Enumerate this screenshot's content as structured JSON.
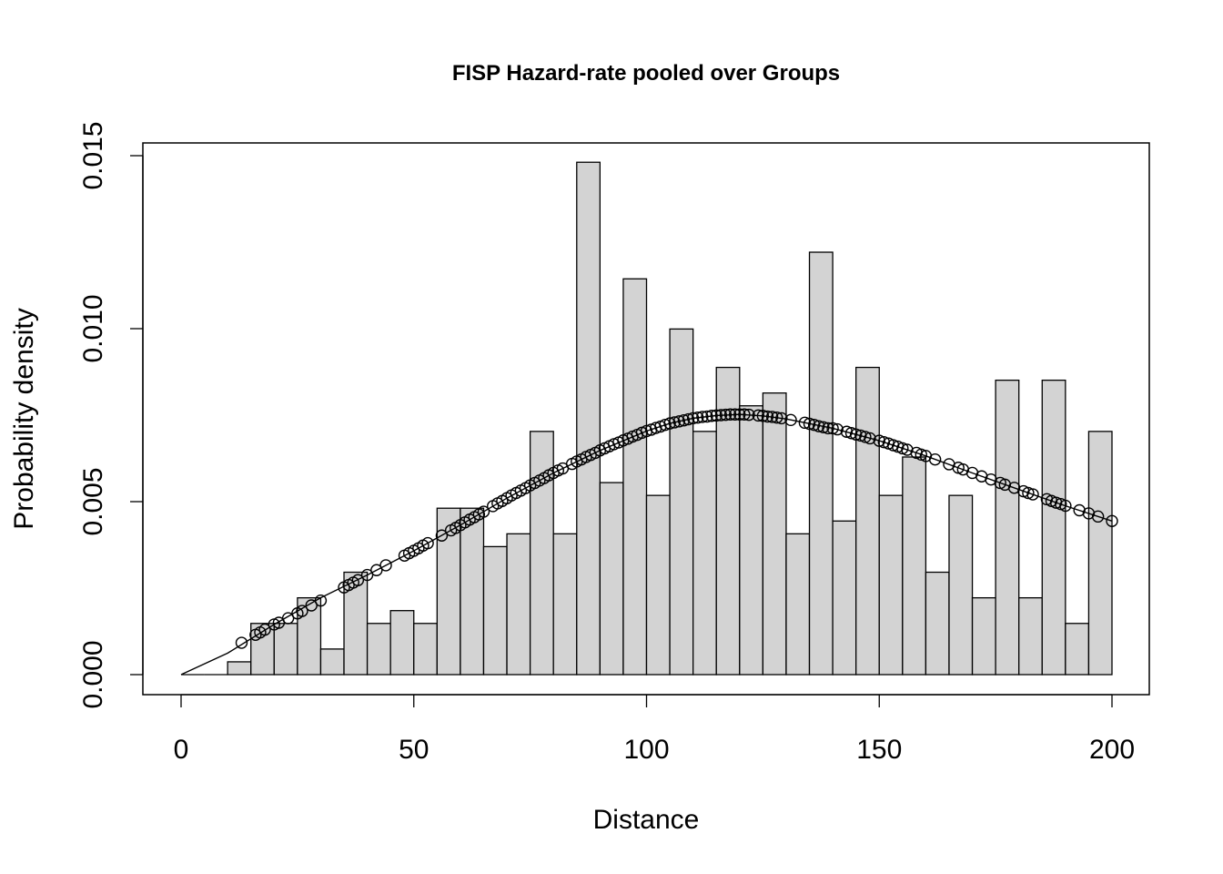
{
  "chart_data": {
    "type": "bar",
    "title": "FISP Hazard-rate  pooled over Groups",
    "xlabel": "Distance",
    "ylabel": "Probability density",
    "xlim": [
      0,
      200
    ],
    "ylim": [
      0,
      0.015
    ],
    "x_ticks": [
      "0",
      "50",
      "100",
      "150",
      "200"
    ],
    "y_ticks": [
      "0.000",
      "0.005",
      "0.010",
      "0.015"
    ],
    "bin_width": 5,
    "bin_edges_start": [
      0,
      5,
      10,
      15,
      20,
      25,
      30,
      35,
      40,
      45,
      50,
      55,
      60,
      65,
      70,
      75,
      80,
      85,
      90,
      95,
      100,
      105,
      110,
      115,
      120,
      125,
      130,
      135,
      140,
      145,
      150,
      155,
      160,
      165,
      170,
      175,
      180,
      185,
      190,
      195
    ],
    "bar_values": [
      0,
      0,
      0.00037,
      0.00148,
      0.00148,
      0.00222,
      0.00074,
      0.00296,
      0.00148,
      0.00185,
      0.00148,
      0.00481,
      0.00481,
      0.0037,
      0.00407,
      0.00703,
      0.00407,
      0.01481,
      0.00555,
      0.01144,
      0.00518,
      0.00999,
      0.00703,
      0.00888,
      0.00777,
      0.00814,
      0.00407,
      0.01221,
      0.00444,
      0.00888,
      0.00518,
      0.00629,
      0.00296,
      0.00518,
      0.00222,
      0.00851,
      0.00222,
      0.00851,
      0.00148,
      0.00703
    ],
    "bar_fill": "#d3d3d3",
    "fitted_curve": {
      "x": [
        0,
        10,
        20,
        30,
        40,
        50,
        60,
        70,
        80,
        90,
        100,
        105,
        110,
        115,
        120,
        125,
        130,
        140,
        150,
        160,
        170,
        180,
        190,
        200
      ],
      "y": [
        0,
        0.00062,
        0.00145,
        0.00222,
        0.00288,
        0.00358,
        0.00432,
        0.0051,
        0.00583,
        0.00648,
        0.00704,
        0.00726,
        0.00741,
        0.00749,
        0.00752,
        0.00748,
        0.00739,
        0.00712,
        0.00676,
        0.00632,
        0.00583,
        0.00535,
        0.00488,
        0.00444
      ]
    },
    "observed_points": {
      "x": [
        13,
        16,
        17,
        18,
        20,
        21,
        23,
        25,
        26,
        28,
        30,
        35,
        36,
        37,
        38,
        40,
        42,
        44,
        48,
        49,
        50,
        51,
        52,
        53,
        56,
        58,
        59,
        60,
        61,
        62,
        63,
        64,
        65,
        67,
        68,
        69,
        70,
        71,
        72,
        73,
        74,
        75,
        76,
        77,
        78,
        79,
        80,
        81,
        82,
        84,
        85,
        86,
        87,
        88,
        89,
        90,
        91,
        92,
        93,
        94,
        95,
        96,
        97,
        98,
        99,
        100,
        101,
        102,
        103,
        104,
        105,
        106,
        107,
        108,
        109,
        110,
        111,
        112,
        113,
        114,
        115,
        116,
        117,
        118,
        119,
        120,
        121,
        122,
        124,
        125,
        126,
        127,
        128,
        129,
        131,
        134,
        135,
        136,
        137,
        138,
        139,
        140,
        141,
        143,
        144,
        145,
        146,
        147,
        148,
        150,
        151,
        152,
        153,
        154,
        155,
        156,
        158,
        159,
        160,
        162,
        165,
        167,
        168,
        170,
        172,
        174,
        176,
        177,
        179,
        181,
        182,
        183,
        186,
        187,
        188,
        189,
        190,
        193,
        195,
        197,
        200
      ],
      "y": [
        0.00092,
        0.00115,
        0.00122,
        0.0013,
        0.00145,
        0.0015,
        0.00163,
        0.00177,
        0.00184,
        0.002,
        0.00214,
        0.00252,
        0.00259,
        0.00266,
        0.00273,
        0.00288,
        0.00302,
        0.00316,
        0.00344,
        0.00351,
        0.00358,
        0.00365,
        0.00373,
        0.0038,
        0.00402,
        0.00417,
        0.00424,
        0.00432,
        0.0044,
        0.00448,
        0.00455,
        0.00463,
        0.00471,
        0.00487,
        0.00495,
        0.00502,
        0.0051,
        0.00518,
        0.00525,
        0.00532,
        0.00539,
        0.00547,
        0.00554,
        0.00561,
        0.00568,
        0.00576,
        0.00583,
        0.0059,
        0.00596,
        0.00609,
        0.00616,
        0.00622,
        0.00629,
        0.00635,
        0.00641,
        0.00648,
        0.00654,
        0.0066,
        0.00666,
        0.00671,
        0.00677,
        0.00682,
        0.00688,
        0.00693,
        0.00699,
        0.00704,
        0.00708,
        0.00713,
        0.00717,
        0.00722,
        0.00726,
        0.00729,
        0.00732,
        0.00735,
        0.00738,
        0.00741,
        0.00743,
        0.00745,
        0.00746,
        0.00748,
        0.00749,
        0.0075,
        0.00751,
        0.00752,
        0.00752,
        0.00752,
        0.00752,
        0.00751,
        0.00749,
        0.00748,
        0.00746,
        0.00745,
        0.00743,
        0.00741,
        0.00736,
        0.00728,
        0.00725,
        0.00722,
        0.00718,
        0.00715,
        0.00712,
        0.00712,
        0.00709,
        0.00702,
        0.00698,
        0.00694,
        0.00691,
        0.00687,
        0.00683,
        0.00676,
        0.00672,
        0.00668,
        0.00663,
        0.00659,
        0.00654,
        0.0065,
        0.00641,
        0.00636,
        0.00632,
        0.00622,
        0.00608,
        0.00598,
        0.00593,
        0.00583,
        0.00573,
        0.00564,
        0.00554,
        0.00549,
        0.0054,
        0.0053,
        0.00525,
        0.00521,
        0.00507,
        0.00502,
        0.00497,
        0.00493,
        0.00488,
        0.00475,
        0.00466,
        0.00457,
        0.00444
      ]
    },
    "grid": false,
    "legend": "none"
  }
}
